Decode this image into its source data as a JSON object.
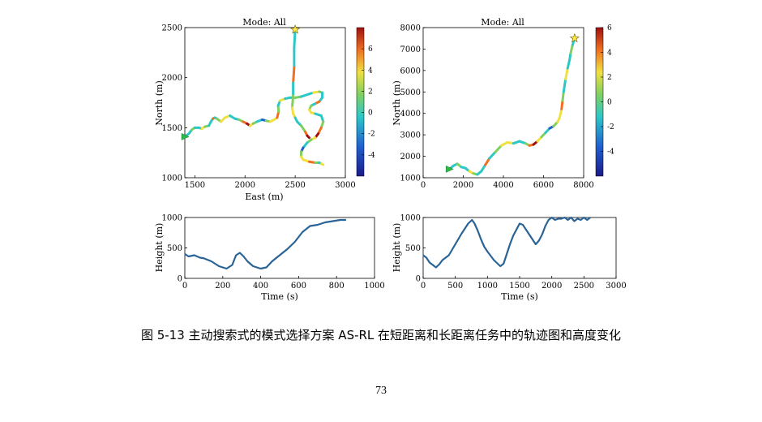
{
  "caption": "图 5-13 主动搜索式的模式选择方案 AS-RL 在短距离和长距离任务中的轨迹图和高度变化",
  "page_number": "73",
  "chart_data": [
    {
      "id": "short-trajectory",
      "type": "line",
      "title": "Mode: All",
      "xlabel": "East (m)",
      "ylabel": "North (m)",
      "xlim": [
        1400,
        3000
      ],
      "ylim": [
        1000,
        2500
      ],
      "xticks": [
        "1500",
        "2000",
        "2500",
        "3000"
      ],
      "yticks": [
        "1000",
        "1500",
        "2000",
        "2500"
      ],
      "colorbar": {
        "range": [
          -6,
          8
        ],
        "ticks": [
          "6",
          "4",
          "2",
          "0",
          "-2",
          "-4"
        ]
      },
      "start_marker": "green-triangle",
      "end_marker": "yellow-star",
      "series": [
        {
          "x": [
            1400,
            1440,
            1470,
            1500,
            1540,
            1570,
            1600,
            1640,
            1660,
            1680,
            1700,
            1720,
            1760,
            1800,
            1850,
            1900,
            1940,
            1980,
            2020,
            2050,
            2080,
            2120,
            2170,
            2210,
            2250,
            2290,
            2320,
            2335,
            2330,
            2350,
            2400,
            2450,
            2500,
            2560,
            2620,
            2680,
            2740,
            2770,
            2770,
            2740,
            2700,
            2660,
            2640,
            2660,
            2700,
            2760,
            2780,
            2760,
            2730,
            2700,
            2660,
            2620,
            2580,
            2560,
            2560,
            2580,
            2640,
            2700,
            2740,
            2760,
            2780
          ],
          "y": [
            1410,
            1440,
            1480,
            1500,
            1500,
            1490,
            1510,
            1520,
            1560,
            1590,
            1600,
            1590,
            1560,
            1600,
            1620,
            1590,
            1580,
            1560,
            1540,
            1520,
            1540,
            1560,
            1580,
            1570,
            1560,
            1580,
            1600,
            1660,
            1720,
            1770,
            1790,
            1800,
            1800,
            1810,
            1830,
            1850,
            1860,
            1850,
            1800,
            1760,
            1740,
            1720,
            1680,
            1650,
            1640,
            1620,
            1560,
            1500,
            1440,
            1400,
            1380,
            1350,
            1300,
            1260,
            1210,
            1180,
            1160,
            1150,
            1150,
            1140,
            1130
          ]
        },
        {
          "x": [
            2500,
            2490,
            2490,
            2480,
            2480,
            2470,
            2480,
            2500,
            2520,
            2560,
            2600,
            2620,
            2640
          ],
          "y": [
            2480,
            2300,
            2100,
            1950,
            1820,
            1700,
            1640,
            1600,
            1560,
            1520,
            1460,
            1420,
            1400
          ]
        }
      ]
    },
    {
      "id": "long-trajectory",
      "type": "line",
      "title": "Mode: All",
      "xlabel": "",
      "ylabel": "North (m)",
      "xlim": [
        0,
        8000
      ],
      "ylim": [
        1000,
        8000
      ],
      "xticks": [
        "0",
        "2000",
        "4000",
        "6000",
        "8000"
      ],
      "yticks": [
        "1000",
        "2000",
        "3000",
        "4000",
        "5000",
        "6000",
        "7000",
        "8000"
      ],
      "colorbar": {
        "range": [
          -6,
          6
        ],
        "ticks": [
          "6",
          "4",
          "2",
          "0",
          "-2",
          "-4"
        ]
      },
      "start_marker": "green-triangle",
      "end_marker": "yellow-star",
      "series": [
        {
          "x": [
            1300,
            1500,
            1700,
            1900,
            2100,
            2300,
            2500,
            2700,
            2900,
            3100,
            3300,
            3600,
            3900,
            4200,
            4500,
            4800,
            5100,
            5300,
            5500,
            5700,
            5900,
            6100,
            6300,
            6500,
            6700,
            6800,
            6900,
            6950,
            7000,
            7100,
            7200,
            7300,
            7350,
            7450,
            7550
          ],
          "y": [
            1400,
            1550,
            1650,
            1500,
            1450,
            1300,
            1200,
            1150,
            1300,
            1600,
            1900,
            2200,
            2500,
            2650,
            2600,
            2700,
            2600,
            2500,
            2550,
            2700,
            2900,
            3100,
            3300,
            3400,
            3600,
            3800,
            4200,
            4600,
            5000,
            5600,
            6100,
            6500,
            6800,
            7200,
            7500
          ]
        }
      ]
    },
    {
      "id": "short-height",
      "type": "line",
      "title": "",
      "xlabel": "Time (s)",
      "ylabel": "Height (m)",
      "xlim": [
        0,
        1000
      ],
      "ylim": [
        0,
        1000
      ],
      "xticks": [
        "0",
        "200",
        "400",
        "600",
        "800",
        "1000"
      ],
      "yticks": [
        "0",
        "500",
        "1000"
      ],
      "series": [
        {
          "x": [
            0,
            20,
            50,
            80,
            100,
            140,
            180,
            220,
            250,
            270,
            290,
            310,
            330,
            360,
            400,
            430,
            460,
            500,
            540,
            580,
            620,
            660,
            700,
            740,
            780,
            820,
            850
          ],
          "y": [
            400,
            360,
            380,
            340,
            330,
            280,
            200,
            160,
            220,
            380,
            420,
            360,
            280,
            200,
            160,
            180,
            280,
            380,
            480,
            600,
            760,
            860,
            880,
            920,
            940,
            960,
            960
          ]
        }
      ]
    },
    {
      "id": "long-height",
      "type": "line",
      "title": "",
      "xlabel": "Time (s)",
      "ylabel": "Height (m)",
      "xlim": [
        0,
        3000
      ],
      "ylim": [
        0,
        1000
      ],
      "xticks": [
        "0",
        "500",
        "1000",
        "1500",
        "2000",
        "2500",
        "3000"
      ],
      "yticks": [
        "0",
        "500",
        "1000"
      ],
      "series": [
        {
          "x": [
            0,
            50,
            100,
            150,
            200,
            250,
            300,
            350,
            400,
            500,
            600,
            700,
            760,
            800,
            850,
            900,
            950,
            1000,
            1100,
            1200,
            1250,
            1300,
            1350,
            1400,
            1500,
            1550,
            1600,
            1650,
            1700,
            1750,
            1800,
            1850,
            1900,
            1950,
            2000,
            2050,
            2100,
            2150,
            2200,
            2250,
            2300,
            2350,
            2400,
            2450,
            2500,
            2550,
            2600
          ],
          "y": [
            380,
            340,
            260,
            220,
            180,
            230,
            300,
            340,
            380,
            560,
            740,
            900,
            960,
            900,
            780,
            640,
            520,
            440,
            300,
            200,
            240,
            400,
            560,
            700,
            900,
            880,
            800,
            720,
            640,
            560,
            620,
            720,
            860,
            960,
            1000,
            960,
            980,
            980,
            1000,
            960,
            1000,
            940,
            980,
            960,
            1000,
            960,
            1000
          ]
        }
      ]
    }
  ]
}
